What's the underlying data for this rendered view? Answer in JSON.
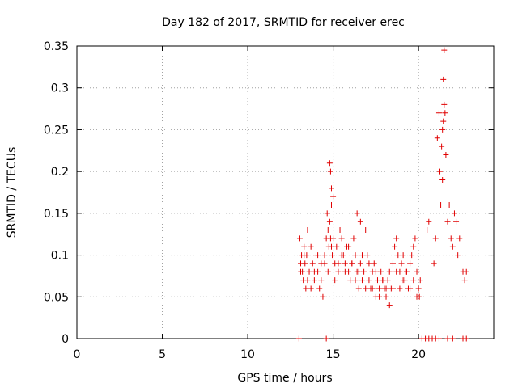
{
  "chart_data": {
    "type": "scatter",
    "title": "Day 182 of 2017, SRMTID for receiver erec",
    "xlabel": "GPS time / hours",
    "ylabel": "SRMTID / TECUs",
    "xlim": [
      0,
      24.4
    ],
    "ylim": [
      0,
      0.35
    ],
    "x_ticks": [
      0,
      5,
      10,
      15,
      20
    ],
    "x_tick_labels": [
      "0",
      "5",
      "10",
      "15",
      "20"
    ],
    "y_ticks": [
      0,
      0.05,
      0.1,
      0.15,
      0.2,
      0.25,
      0.3,
      0.35
    ],
    "y_tick_labels": [
      "0",
      "0.05",
      "0.1",
      "0.15",
      "0.2",
      "0.25",
      "0.3",
      "0.35"
    ],
    "grid": true,
    "marker": "plus",
    "color": "#e00000",
    "series": [
      {
        "name": "SRMTID",
        "x": [
          13.05,
          13.1,
          13.15,
          13.2,
          13.25,
          13.3,
          13.35,
          13.4,
          13.45,
          13.5,
          13.6,
          13.7,
          13.8,
          13.9,
          14.0,
          14.1,
          14.2,
          14.3,
          14.4,
          14.5,
          14.6,
          14.65,
          14.7,
          14.75,
          14.8,
          14.85,
          14.9,
          14.95,
          15.0,
          15.1,
          15.2,
          15.3,
          15.4,
          15.5,
          15.6,
          15.7,
          15.8,
          15.9,
          16.0,
          16.1,
          16.2,
          16.3,
          16.4,
          16.5,
          16.6,
          16.7,
          16.8,
          16.9,
          17.0,
          17.1,
          17.2,
          17.3,
          17.4,
          17.5,
          17.6,
          17.7,
          17.8,
          17.9,
          18.0,
          18.1,
          18.2,
          18.3,
          18.4,
          18.5,
          18.6,
          18.7,
          18.8,
          18.9,
          19.0,
          19.1,
          19.2,
          19.3,
          19.4,
          19.5,
          19.6,
          19.7,
          19.8,
          19.9,
          20.0,
          20.05,
          20.1,
          20.5,
          20.6,
          20.9,
          21.0,
          21.1,
          21.2,
          21.25,
          21.3,
          21.35,
          21.4,
          21.45,
          21.5,
          21.55,
          21.6,
          21.7,
          21.8,
          21.9,
          22.0,
          22.1,
          22.2,
          22.3,
          22.4,
          22.6,
          22.7,
          22.8,
          13.1,
          13.3,
          13.5,
          13.7,
          13.9,
          14.1,
          14.3,
          14.5,
          14.7,
          14.9,
          15.1,
          15.3,
          15.5,
          15.7,
          15.9,
          16.1,
          16.3,
          16.5,
          16.7,
          16.9,
          17.1,
          17.3,
          17.5,
          17.7,
          17.9,
          18.1,
          18.3,
          18.5,
          18.7,
          18.9,
          19.1,
          19.3,
          19.5,
          19.7,
          19.9,
          14.8,
          14.85,
          14.9,
          15.0,
          16.4,
          16.6,
          21.4,
          21.45,
          21.5,
          13.0,
          14.6,
          20.2,
          20.4,
          20.6,
          20.8,
          21.0,
          21.2,
          21.7,
          22.0,
          22.6,
          22.8
        ],
        "y": [
          0.12,
          0.09,
          0.1,
          0.08,
          0.07,
          0.11,
          0.09,
          0.06,
          0.1,
          0.13,
          0.08,
          0.11,
          0.09,
          0.07,
          0.1,
          0.08,
          0.06,
          0.09,
          0.05,
          0.1,
          0.12,
          0.15,
          0.13,
          0.11,
          0.14,
          0.12,
          0.16,
          0.1,
          0.12,
          0.09,
          0.11,
          0.08,
          0.13,
          0.12,
          0.1,
          0.09,
          0.11,
          0.08,
          0.07,
          0.09,
          0.12,
          0.1,
          0.08,
          0.06,
          0.09,
          0.07,
          0.08,
          0.13,
          0.1,
          0.07,
          0.06,
          0.08,
          0.09,
          0.05,
          0.07,
          0.06,
          0.08,
          0.07,
          0.06,
          0.05,
          0.07,
          0.08,
          0.06,
          0.09,
          0.11,
          0.12,
          0.1,
          0.08,
          0.09,
          0.1,
          0.07,
          0.08,
          0.06,
          0.09,
          0.1,
          0.11,
          0.12,
          0.08,
          0.06,
          0.05,
          0.07,
          0.13,
          0.14,
          0.09,
          0.12,
          0.24,
          0.27,
          0.2,
          0.16,
          0.23,
          0.19,
          0.31,
          0.345,
          0.27,
          0.22,
          0.14,
          0.16,
          0.12,
          0.11,
          0.15,
          0.14,
          0.1,
          0.12,
          0.08,
          0.07,
          0.08,
          0.08,
          0.1,
          0.07,
          0.06,
          0.08,
          0.1,
          0.07,
          0.09,
          0.08,
          0.11,
          0.07,
          0.09,
          0.1,
          0.08,
          0.11,
          0.09,
          0.07,
          0.08,
          0.1,
          0.06,
          0.09,
          0.06,
          0.08,
          0.05,
          0.07,
          0.06,
          0.04,
          0.06,
          0.08,
          0.06,
          0.07,
          0.08,
          0.06,
          0.07,
          0.05,
          0.21,
          0.2,
          0.18,
          0.17,
          0.15,
          0.14,
          0.25,
          0.26,
          0.28,
          0.0,
          0.0,
          0.0,
          0.0,
          0.0,
          0.0,
          0.0,
          0.0,
          0.0,
          0.0,
          0.0,
          0.0
        ]
      }
    ]
  }
}
